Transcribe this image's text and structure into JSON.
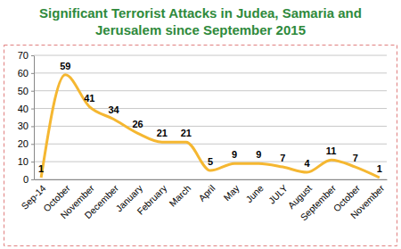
{
  "chart_data": {
    "type": "line",
    "title": "Significant Terrorist Attacks in Judea, Samaria and Jerusalem since September 2015",
    "categories": [
      "Sep-14",
      "October",
      "November",
      "December",
      "January",
      "February",
      "March",
      "April",
      "May",
      "June",
      "JULY",
      "August",
      "September",
      "October",
      "November"
    ],
    "values": [
      1,
      59,
      41,
      34,
      26,
      21,
      21,
      5,
      9,
      9,
      7,
      4,
      11,
      7,
      1
    ],
    "color": "#f5b731",
    "ylim": [
      0,
      70
    ],
    "yticks": [
      0,
      10,
      20,
      30,
      40,
      50,
      60,
      70
    ],
    "grid": true,
    "data_labels": true
  }
}
